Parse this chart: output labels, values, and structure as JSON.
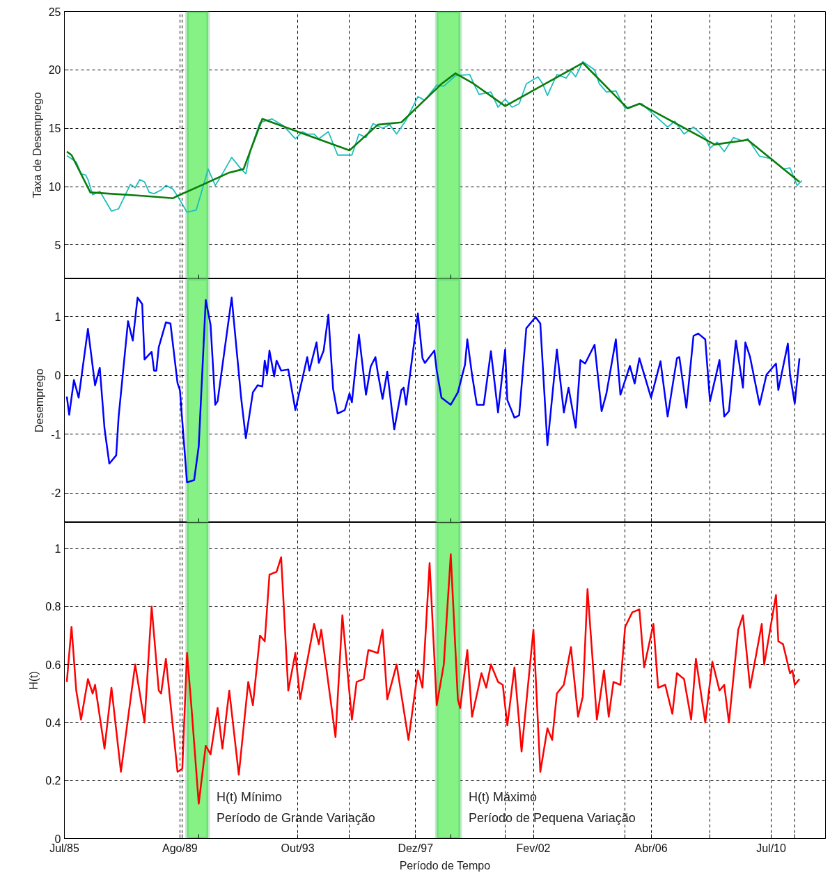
{
  "chart_data": [
    {
      "type": "line",
      "ylabel": "Taxa de Desemprego",
      "ylim": [
        2.1,
        25
      ],
      "yticks": [
        5,
        10,
        15,
        20,
        25
      ],
      "xlim": [
        "1985-07",
        "2012-06"
      ],
      "xticks": [
        {
          "value": "1985-07",
          "label": null
        },
        {
          "value": "1989-08",
          "label": null
        },
        {
          "value": "1989-09",
          "label": null
        },
        {
          "value": "1990-04",
          "label": null
        },
        {
          "value": "1993-10",
          "label": null
        },
        {
          "value": "1995-08",
          "label": null
        },
        {
          "value": "1997-12",
          "label": null
        },
        {
          "value": "1999-03",
          "label": null
        },
        {
          "value": "2001-02",
          "label": null
        },
        {
          "value": "2002-02",
          "label": null
        },
        {
          "value": "2005-05",
          "label": null
        },
        {
          "value": "2006-04",
          "label": null
        },
        {
          "value": "2008-05",
          "label": null
        },
        {
          "value": "2010-07",
          "label": null
        },
        {
          "value": "2011-05",
          "label": null
        }
      ],
      "tick_labels": "y",
      "grid": true,
      "bands": [
        {
          "axis": "x",
          "from": "1989-11",
          "to": "1990-08",
          "color": "#86f286"
        },
        {
          "axis": "x",
          "from": "1998-09",
          "to": "1999-07",
          "color": "#86f286"
        }
      ],
      "series": [
        {
          "color": "#1ebebe",
          "x": [
            "1985-08",
            "1985-12",
            "1986-02",
            "1986-04",
            "1986-05",
            "1986-07",
            "1986-10",
            "1987-03",
            "1987-06",
            "1987-11",
            "1988-01",
            "1988-03",
            "1988-05",
            "1988-07",
            "1988-09",
            "1988-12",
            "1989-02",
            "1989-05",
            "1989-07",
            "1989-11",
            "1990-03",
            "1990-08",
            "1990-11",
            "1991-02",
            "1991-06",
            "1991-10",
            "1991-12",
            "1992-02",
            "1992-06",
            "1992-11",
            "1993-04",
            "1993-09",
            "1993-12",
            "1994-02",
            "1994-05",
            "1994-07",
            "1994-11",
            "1995-03",
            "1995-09",
            "1995-12",
            "1996-03",
            "1996-06",
            "1996-10",
            "1997-01",
            "1997-04",
            "1997-08",
            "1998-01",
            "1998-04",
            "1998-09",
            "1998-12",
            "1999-05",
            "1999-11",
            "2000-01",
            "2000-03",
            "2000-08",
            "2000-11",
            "2001-02",
            "2001-05",
            "2001-08",
            "2001-11",
            "2002-04",
            "2002-06",
            "2002-08",
            "2002-12",
            "2003-04",
            "2003-06",
            "2003-08",
            "2003-11",
            "2004-04",
            "2004-06",
            "2004-09",
            "2005-01",
            "2005-05",
            "2005-12",
            "2006-05",
            "2006-11",
            "2007-02",
            "2007-06",
            "2007-10",
            "2008-03",
            "2008-05",
            "2008-08",
            "2008-11",
            "2009-03",
            "2009-07",
            "2009-09",
            "2010-02",
            "2010-07",
            "2010-12",
            "2011-03",
            "2011-06",
            "2011-08"
          ],
          "values": [
            12.65,
            12.1,
            11.1,
            11.0,
            10.6,
            9.3,
            9.6,
            7.9,
            8.1,
            10.2,
            9.9,
            10.6,
            10.4,
            9.5,
            9.4,
            9.7,
            10.1,
            9.8,
            9.2,
            7.8,
            8.0,
            11.5,
            10.1,
            11.1,
            12.5,
            11.5,
            11.1,
            13.2,
            15.5,
            15.8,
            15.2,
            14.1,
            14.7,
            14.5,
            14.5,
            14.1,
            14.7,
            12.7,
            12.7,
            14.5,
            14.2,
            15.4,
            15.0,
            15.3,
            14.5,
            15.7,
            17.7,
            17.4,
            18.7,
            18.6,
            19.5,
            19.6,
            18.7,
            17.9,
            18.1,
            16.8,
            17.5,
            16.8,
            17.1,
            18.8,
            19.4,
            18.8,
            17.8,
            19.6,
            19.3,
            19.9,
            19.4,
            20.7,
            20.0,
            18.8,
            18.1,
            18.2,
            16.7,
            17.1,
            16.2,
            15.1,
            15.6,
            14.5,
            15.1,
            14.2,
            13.3,
            13.8,
            13.0,
            14.2,
            13.9,
            14.1,
            12.6,
            12.4,
            11.5,
            11.6,
            10.1,
            10.5
          ]
        },
        {
          "color": "#0a7d0a",
          "x": [
            "1985-08",
            "1985-10",
            "1986-06",
            "1988-05",
            "1989-05",
            "1989-07",
            "1990-05",
            "1991-05",
            "1991-11",
            "1992-07",
            "1995-08",
            "1996-08",
            "1997-06",
            "1998-09",
            "1998-11",
            "1999-05",
            "1999-12",
            "2001-02",
            "2003-11",
            "2005-06",
            "2005-11",
            "2008-07",
            "2009-09",
            "2011-07"
          ],
          "values": [
            13.0,
            12.7,
            9.5,
            9.2,
            9.0,
            9.2,
            10.1,
            11.2,
            11.5,
            15.8,
            13.1,
            15.3,
            15.5,
            18.4,
            18.8,
            19.7,
            18.9,
            16.9,
            20.6,
            16.7,
            17.1,
            13.6,
            14.0,
            10.4
          ]
        }
      ]
    },
    {
      "type": "line",
      "ylabel": "Desemprego",
      "ylim": [
        -2.5,
        1.64
      ],
      "yticks": [
        -2,
        -1,
        0,
        1
      ],
      "xlim": [
        "1985-07",
        "2012-06"
      ],
      "xticks": [
        {
          "value": "1985-07",
          "label": null
        },
        {
          "value": "1989-08",
          "label": null
        },
        {
          "value": "1989-09",
          "label": null
        },
        {
          "value": "1990-04",
          "label": null
        },
        {
          "value": "1993-10",
          "label": null
        },
        {
          "value": "1995-08",
          "label": null
        },
        {
          "value": "1997-12",
          "label": null
        },
        {
          "value": "1999-03",
          "label": null
        },
        {
          "value": "2001-02",
          "label": null
        },
        {
          "value": "2002-02",
          "label": null
        },
        {
          "value": "2005-05",
          "label": null
        },
        {
          "value": "2006-04",
          "label": null
        },
        {
          "value": "2008-05",
          "label": null
        },
        {
          "value": "2010-07",
          "label": null
        },
        {
          "value": "2011-05",
          "label": null
        }
      ],
      "tick_labels": "y",
      "grid": true,
      "bands": [
        {
          "axis": "x",
          "from": "1989-11",
          "to": "1990-08",
          "color": "#86f286"
        },
        {
          "axis": "x",
          "from": "1998-09",
          "to": "1999-07",
          "color": "#86f286"
        }
      ],
      "series": [
        {
          "color": "#0000ff",
          "x": [
            "1985-08",
            "1985-09",
            "1985-11",
            "1986-01",
            "1986-05",
            "1986-08",
            "1986-10",
            "1986-12",
            "1987-02",
            "1987-05",
            "1987-06",
            "1987-10",
            "1987-12",
            "1988-02",
            "1988-04",
            "1988-05",
            "1988-08",
            "1988-09",
            "1988-10",
            "1988-11",
            "1989-02",
            "1989-04",
            "1989-07",
            "1989-08",
            "1989-11",
            "1990-02",
            "1990-04",
            "1990-07",
            "1990-09",
            "1990-11",
            "1990-12",
            "1991-06",
            "1991-10",
            "1991-12",
            "1992-03",
            "1992-05",
            "1992-07",
            "1992-08",
            "1992-09",
            "1992-10",
            "1992-12",
            "1993-01",
            "1993-03",
            "1993-06",
            "1993-09",
            "1994-02",
            "1994-03",
            "1994-06",
            "1994-07",
            "1994-09",
            "1994-11",
            "1995-01",
            "1995-03",
            "1995-06",
            "1995-08",
            "1995-09",
            "1995-12",
            "1996-03",
            "1996-05",
            "1996-07",
            "1996-08",
            "1996-10",
            "1996-12",
            "1997-03",
            "1997-06",
            "1997-07",
            "1997-08",
            "1998-01",
            "1998-03",
            "1998-04",
            "1998-08",
            "1998-09",
            "1998-11",
            "1999-03",
            "1999-06",
            "1999-09",
            "1999-10",
            "1999-12",
            "2000-02",
            "2000-05",
            "2000-08",
            "2000-11",
            "2001-02",
            "2001-03",
            "2001-06",
            "2001-08",
            "2001-11",
            "2002-03",
            "2002-05",
            "2002-08",
            "2002-12",
            "2003-03",
            "2003-05",
            "2003-08",
            "2003-10",
            "2003-12",
            "2004-04",
            "2004-07",
            "2004-09",
            "2005-01",
            "2005-03",
            "2005-07",
            "2005-09",
            "2005-11",
            "2006-04",
            "2006-08",
            "2006-11",
            "2007-03",
            "2007-04",
            "2007-07",
            "2007-10",
            "2007-12",
            "2008-03",
            "2008-05",
            "2008-09",
            "2008-11",
            "2009-01",
            "2009-04",
            "2009-07",
            "2009-08",
            "2009-10",
            "2010-02",
            "2010-05",
            "2010-09",
            "2010-10",
            "2011-02",
            "2011-03",
            "2011-05",
            "2011-07"
          ],
          "values": [
            -0.36,
            -0.67,
            -0.08,
            -0.38,
            0.79,
            -0.17,
            0.13,
            -0.9,
            -1.5,
            -1.36,
            -0.71,
            0.92,
            0.59,
            1.32,
            1.21,
            0.27,
            0.4,
            0.08,
            0.08,
            0.48,
            0.9,
            0.88,
            -0.13,
            -0.25,
            -1.82,
            -1.78,
            -1.21,
            1.28,
            0.86,
            -0.5,
            -0.44,
            1.32,
            -0.38,
            -1.07,
            -0.29,
            -0.17,
            -0.19,
            0.25,
            0.02,
            0.42,
            -0.02,
            0.25,
            0.08,
            0.1,
            -0.59,
            0.31,
            0.08,
            0.56,
            0.21,
            0.42,
            1.03,
            -0.23,
            -0.65,
            -0.59,
            -0.31,
            -0.46,
            0.69,
            -0.33,
            0.15,
            0.31,
            0.04,
            -0.4,
            0.06,
            -0.92,
            -0.25,
            -0.21,
            -0.5,
            1.05,
            0.29,
            0.21,
            0.42,
            0.08,
            -0.38,
            -0.5,
            -0.29,
            0.18,
            0.61,
            0.01,
            -0.5,
            -0.5,
            0.41,
            -0.63,
            0.44,
            -0.42,
            -0.72,
            -0.68,
            0.8,
            0.99,
            0.88,
            -1.19,
            0.44,
            -0.63,
            -0.21,
            -0.89,
            0.26,
            0.2,
            0.52,
            -0.61,
            -0.31,
            0.61,
            -0.33,
            0.16,
            -0.14,
            0.29,
            -0.38,
            0.24,
            -0.7,
            0.29,
            0.31,
            -0.55,
            0.67,
            0.71,
            0.61,
            -0.44,
            0.26,
            -0.7,
            -0.61,
            0.59,
            -0.21,
            0.56,
            0.31,
            -0.5,
            0.01,
            0.2,
            -0.25,
            0.54,
            0.01,
            -0.48,
            0.29
          ]
        }
      ]
    },
    {
      "type": "line",
      "ylabel": "H(t)",
      "xlabel": "Período de Tempo",
      "ylim": [
        0,
        1.09
      ],
      "yticks": [
        0,
        0.2,
        0.4,
        0.6,
        0.8,
        1
      ],
      "xlim": [
        "1985-07",
        "2012-06"
      ],
      "xticks": [
        {
          "value": "1985-07",
          "label": "Jul/85"
        },
        {
          "value": "1989-08",
          "label": "Ago/89"
        },
        {
          "value": "1989-09",
          "label": null
        },
        {
          "value": "1990-04",
          "label": null
        },
        {
          "value": "1993-10",
          "label": "Out/93"
        },
        {
          "value": "1995-08",
          "label": null
        },
        {
          "value": "1997-12",
          "label": "Dez/97"
        },
        {
          "value": "1999-03",
          "label": null
        },
        {
          "value": "2001-02",
          "label": null
        },
        {
          "value": "2002-02",
          "label": "Fev/02"
        },
        {
          "value": "2005-05",
          "label": null
        },
        {
          "value": "2006-04",
          "label": "Abr/06"
        },
        {
          "value": "2008-05",
          "label": null
        },
        {
          "value": "2010-07",
          "label": "Jul/10"
        },
        {
          "value": "2011-05",
          "label": null
        }
      ],
      "grid": true,
      "bands": [
        {
          "axis": "x",
          "from": "1989-11",
          "to": "1990-08",
          "color": "#86f286"
        },
        {
          "axis": "x",
          "from": "1998-09",
          "to": "1999-07",
          "color": "#86f286"
        }
      ],
      "annotations": [
        "H(t) Mínimo\nPeríodo de Grande Variação",
        "H(t) Máximo\nPeríodo de Pequena Variação"
      ],
      "series": [
        {
          "color": "#ff0000",
          "x": [
            "1985-08",
            "1985-10",
            "1985-12",
            "1986-02",
            "1986-05",
            "1986-07",
            "1986-08",
            "1986-12",
            "1987-03",
            "1987-07",
            "1988-01",
            "1988-05",
            "1988-08",
            "1988-11",
            "1988-12",
            "1989-02",
            "1989-07",
            "1989-09",
            "1989-11",
            "1990-01",
            "1990-04",
            "1990-07",
            "1990-09",
            "1990-12",
            "1991-02",
            "1991-05",
            "1991-09",
            "1992-01",
            "1992-03",
            "1992-06",
            "1992-08",
            "1992-10",
            "1993-01",
            "1993-03",
            "1993-06",
            "1993-09",
            "1993-11",
            "1994-05",
            "1994-07",
            "1994-08",
            "1995-02",
            "1995-05",
            "1995-09",
            "1995-11",
            "1996-02",
            "1996-04",
            "1996-08",
            "1996-10",
            "1996-12",
            "1997-04",
            "1997-09",
            "1998-01",
            "1998-03",
            "1998-06",
            "1998-09",
            "1998-12",
            "1999-03",
            "1999-06",
            "1999-07",
            "1999-10",
            "1999-12",
            "2000-04",
            "2000-06",
            "2000-08",
            "2000-11",
            "2001-01",
            "2001-03",
            "2001-06",
            "2001-09",
            "2002-02",
            "2002-05",
            "2002-08",
            "2002-10",
            "2002-12",
            "2003-03",
            "2003-06",
            "2003-09",
            "2003-11",
            "2004-01",
            "2004-05",
            "2004-08",
            "2004-10",
            "2004-12",
            "2005-03",
            "2005-05",
            "2005-08",
            "2005-11",
            "2006-01",
            "2006-05",
            "2006-07",
            "2006-10",
            "2007-01",
            "2007-03",
            "2007-06",
            "2007-09",
            "2007-11",
            "2008-03",
            "2008-06",
            "2008-09",
            "2008-11",
            "2009-01",
            "2009-05",
            "2009-07",
            "2009-10",
            "2010-03",
            "2010-04",
            "2010-09",
            "2010-10",
            "2010-12",
            "2011-03",
            "2011-04",
            "2011-05",
            "2011-07"
          ],
          "values": [
            0.54,
            0.73,
            0.51,
            0.41,
            0.55,
            0.5,
            0.53,
            0.31,
            0.52,
            0.23,
            0.6,
            0.4,
            0.8,
            0.51,
            0.5,
            0.62,
            0.23,
            0.24,
            0.64,
            0.44,
            0.12,
            0.32,
            0.29,
            0.45,
            0.31,
            0.51,
            0.22,
            0.54,
            0.46,
            0.7,
            0.68,
            0.91,
            0.92,
            0.97,
            0.51,
            0.64,
            0.48,
            0.74,
            0.67,
            0.72,
            0.35,
            0.77,
            0.41,
            0.54,
            0.55,
            0.65,
            0.64,
            0.72,
            0.48,
            0.6,
            0.34,
            0.58,
            0.52,
            0.95,
            0.46,
            0.6,
            0.98,
            0.48,
            0.45,
            0.65,
            0.42,
            0.57,
            0.52,
            0.6,
            0.54,
            0.53,
            0.39,
            0.59,
            0.3,
            0.72,
            0.23,
            0.38,
            0.34,
            0.5,
            0.53,
            0.66,
            0.42,
            0.49,
            0.86,
            0.41,
            0.58,
            0.42,
            0.54,
            0.53,
            0.73,
            0.78,
            0.79,
            0.59,
            0.74,
            0.52,
            0.53,
            0.43,
            0.57,
            0.55,
            0.41,
            0.62,
            0.4,
            0.61,
            0.51,
            0.53,
            0.4,
            0.72,
            0.77,
            0.52,
            0.74,
            0.6,
            0.84,
            0.68,
            0.67,
            0.57,
            0.58,
            0.53,
            0.55
          ]
        }
      ]
    }
  ]
}
